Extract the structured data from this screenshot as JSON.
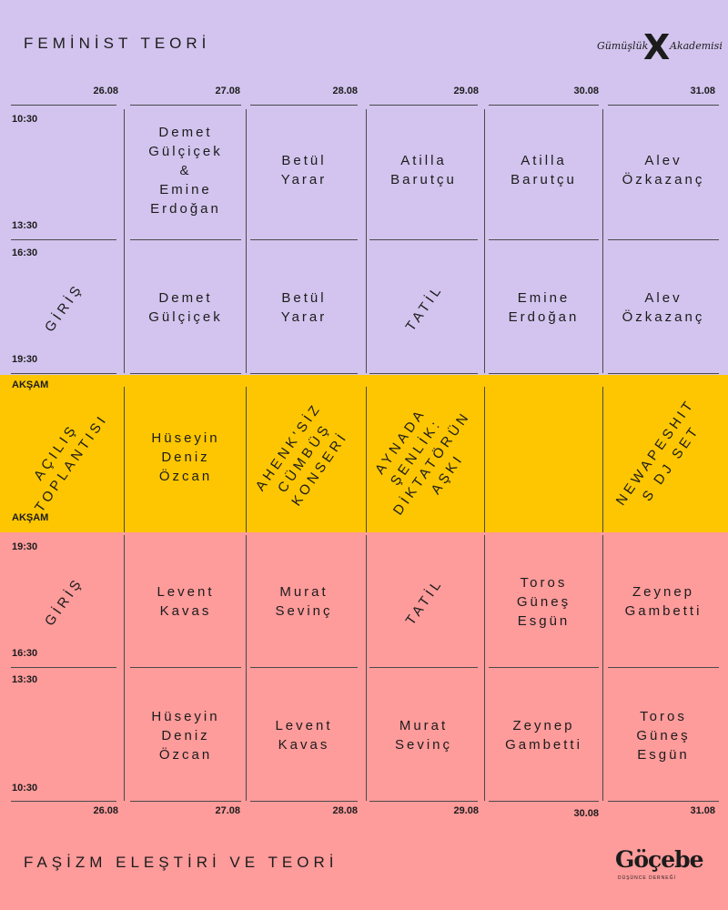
{
  "top": {
    "title": "FEMİNİST TEORİ",
    "logo": {
      "left": "Gümüşlük",
      "right": "Akademisi",
      "mark": "X"
    },
    "dates": [
      "26.08",
      "27.08",
      "28.08",
      "29.08",
      "30.08",
      "31.08"
    ],
    "times": {
      "s1_start": "10:30",
      "s1_end": "13:30",
      "s2_start": "16:30",
      "s2_end": "19:30"
    },
    "row1": [
      "",
      "Demet\nGülçiçek\n&\nEmine\nErdoğan",
      "Betül\nYarar",
      "Atilla\nBarutçu",
      "Atilla\nBarutçu",
      "Alev\nÖzkazanç"
    ],
    "row2": [
      "GİRİŞ",
      "Demet\nGülçiçek",
      "Betül\nYarar",
      "TATİL",
      "Emine\nErdoğan",
      "Alev\nÖzkazanç"
    ]
  },
  "mid": {
    "label_top": "AKŞAM",
    "label_bottom": "AKŞAM",
    "cells": [
      "AÇILIŞ\nTOPLANTISI",
      "Hüseyin\nDeniz\nÖzcan",
      "AHENK'SİZ\nCÜMBÜŞ\nKONSERİ",
      "AYNADA\nŞENLİK:\nDİKTATÖRÜN\nAŞKI",
      "",
      "NEWAPESHIT\nS DJ SET"
    ]
  },
  "bottom": {
    "title": "FAŞİZM ELEŞTİRİ VE TEORİ",
    "logo": {
      "name": "Göçebe",
      "sub": "DÜŞÜNCE DERNEĞİ"
    },
    "dates": [
      "26.08",
      "27.08",
      "28.08",
      "29.08",
      "30.08",
      "31.08"
    ],
    "times": {
      "s1_start": "19:30",
      "s1_end": "16:30",
      "s2_start": "13:30",
      "s2_end": "10:30"
    },
    "row1": [
      "GİRİŞ",
      "Levent\nKavas",
      "Murat\nSevinç",
      "TATİL",
      "Toros\nGüneş\nEsgün",
      "Zeynep\nGambetti"
    ],
    "row2": [
      "",
      "Hüseyin\nDeniz\nÖzcan",
      "Levent\nKavas",
      "Murat\nSevinç",
      "Zeynep\nGambetti",
      "Toros\nGüneş\nEsgün"
    ]
  }
}
